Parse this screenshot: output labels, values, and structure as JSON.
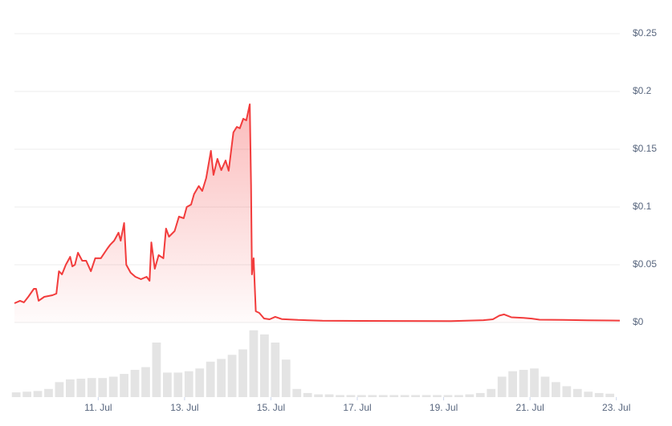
{
  "chart_data": {
    "type": "line",
    "x": [
      9.06,
      9.19,
      9.28,
      9.38,
      9.51,
      9.56,
      9.62,
      9.75,
      9.94,
      10.03,
      10.09,
      10.16,
      10.25,
      10.35,
      10.4,
      10.46,
      10.53,
      10.63,
      10.72,
      10.83,
      10.93,
      11.06,
      11.21,
      11.28,
      11.37,
      11.47,
      11.52,
      11.6,
      11.65,
      11.75,
      11.86,
      11.99,
      12.12,
      12.19,
      12.23,
      12.31,
      12.4,
      12.51,
      12.57,
      12.64,
      12.77,
      12.87,
      12.98,
      13.05,
      13.15,
      13.22,
      13.33,
      13.41,
      13.5,
      13.61,
      13.67,
      13.76,
      13.85,
      13.95,
      14.02,
      14.13,
      14.21,
      14.28,
      14.36,
      14.43,
      14.51,
      14.54,
      14.56,
      14.6,
      14.65,
      14.73,
      14.84,
      14.97,
      15.1,
      15.25,
      15.63,
      16.19,
      17.12,
      18.05,
      19.17,
      19.92,
      20.14,
      20.29,
      20.4,
      20.57,
      20.85,
      21.04,
      21.22,
      21.78,
      22.34,
      23.08
    ],
    "series": [
      {
        "color": "#f23c3c",
        "values": [
          0.0167,
          0.0188,
          0.0174,
          0.0222,
          0.0292,
          0.0292,
          0.0188,
          0.0222,
          0.0236,
          0.025,
          0.0444,
          0.0417,
          0.05,
          0.0569,
          0.0486,
          0.05,
          0.0604,
          0.0535,
          0.0535,
          0.0444,
          0.0556,
          0.0556,
          0.0639,
          0.0674,
          0.0708,
          0.0778,
          0.0708,
          0.0861,
          0.05,
          0.0431,
          0.0396,
          0.0375,
          0.0396,
          0.0361,
          0.0694,
          0.0465,
          0.0583,
          0.0556,
          0.0813,
          0.0743,
          0.0792,
          0.0917,
          0.0903,
          0.1,
          0.1021,
          0.1111,
          0.1181,
          0.1139,
          0.125,
          0.1486,
          0.1278,
          0.1417,
          0.1319,
          0.1403,
          0.1313,
          0.1646,
          0.1694,
          0.1681,
          0.1764,
          0.175,
          0.1889,
          0.1194,
          0.0417,
          0.0556,
          0.0097,
          0.0083,
          0.0035,
          0.0028,
          0.0049,
          0.003,
          0.0022,
          0.0016,
          0.0014,
          0.0013,
          0.0012,
          0.002,
          0.0028,
          0.006,
          0.007,
          0.0045,
          0.004,
          0.0034,
          0.0024,
          0.0022,
          0.0019,
          0.0017
        ]
      }
    ],
    "xlim": [
      9.06,
      23.08
    ],
    "xticks": [
      {
        "value": 11,
        "label": "11. Jul"
      },
      {
        "value": 13,
        "label": "13. Jul"
      },
      {
        "value": 15,
        "label": "15. Jul"
      },
      {
        "value": 17,
        "label": "17. Jul"
      },
      {
        "value": 19,
        "label": "19. Jul"
      },
      {
        "value": 21,
        "label": "21. Jul"
      },
      {
        "value": 23,
        "label": "23. Jul"
      }
    ],
    "ylim": [
      0,
      0.25
    ],
    "yticks": [
      {
        "value": 0,
        "label": "$0"
      },
      {
        "value": 0.05,
        "label": "$0.05"
      },
      {
        "value": 0.1,
        "label": "$0.1"
      },
      {
        "value": 0.15,
        "label": "$0.15"
      },
      {
        "value": 0.2,
        "label": "$0.2"
      },
      {
        "value": 0.25,
        "label": "$0.25"
      }
    ],
    "grid": true,
    "volume": {
      "color": "#e4e4e4",
      "ylim": [
        0,
        100
      ],
      "x": [
        9.1,
        9.35,
        9.6,
        9.85,
        10.1,
        10.35,
        10.6,
        10.85,
        11.1,
        11.35,
        11.6,
        11.85,
        12.1,
        12.35,
        12.6,
        12.85,
        13.1,
        13.35,
        13.6,
        13.85,
        14.1,
        14.35,
        14.6,
        14.85,
        15.1,
        15.35,
        15.6,
        15.85,
        16.1,
        16.35,
        16.6,
        16.85,
        17.1,
        17.35,
        17.6,
        17.85,
        18.1,
        18.35,
        18.6,
        18.85,
        19.1,
        19.35,
        19.6,
        19.85,
        20.1,
        20.35,
        20.6,
        20.85,
        21.1,
        21.35,
        21.6,
        21.85,
        22.1,
        22.35,
        22.6,
        22.85
      ],
      "values": [
        7,
        8,
        9,
        12,
        22,
        26,
        27,
        28,
        28,
        30,
        34,
        40,
        44,
        80,
        36,
        36,
        38,
        42,
        52,
        56,
        62,
        70,
        98,
        92,
        80,
        55,
        12,
        6,
        4,
        4,
        3,
        3,
        3,
        3,
        3,
        3,
        3,
        3,
        3,
        3,
        3,
        3,
        4,
        6,
        12,
        30,
        38,
        40,
        42,
        30,
        22,
        16,
        12,
        8,
        6,
        5
      ]
    }
  }
}
